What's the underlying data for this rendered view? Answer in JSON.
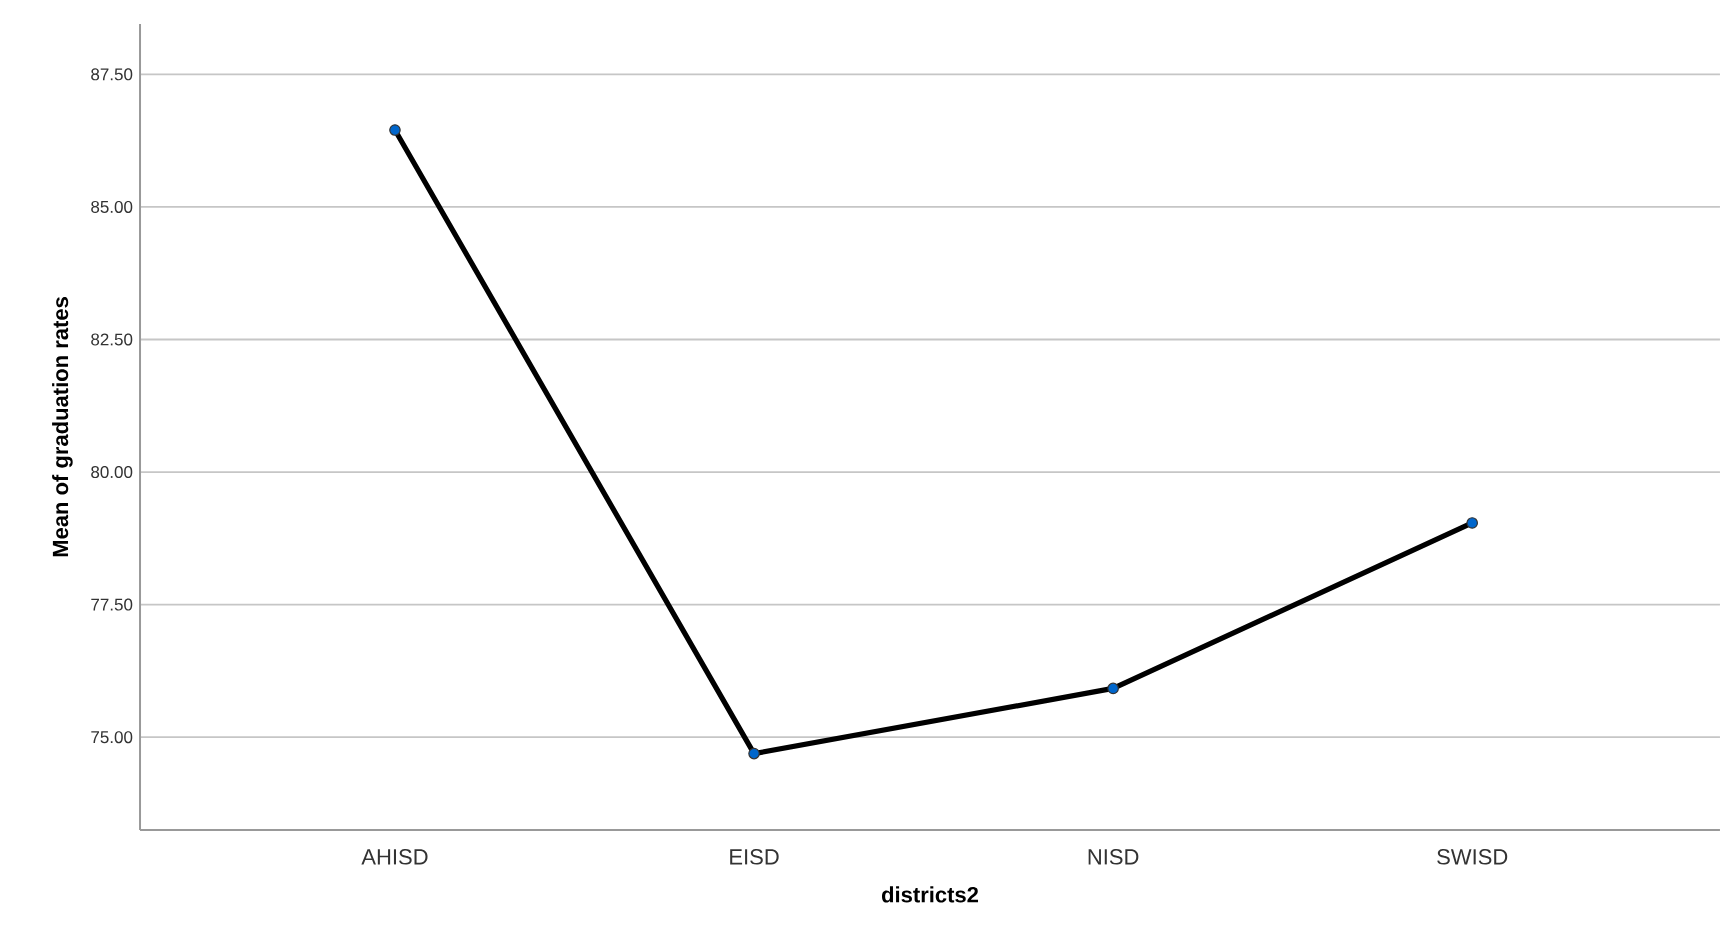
{
  "chart_data": {
    "type": "line",
    "xlabel": "districts2",
    "ylabel": "Mean of graduation rates",
    "categories": [
      "AHISD",
      "EISD",
      "NISD",
      "SWISD"
    ],
    "series": [
      {
        "color": "#000000",
        "values": [
          86.45,
          74.69,
          75.92,
          79.04
        ]
      }
    ],
    "marker": "circle",
    "line_style": "solid",
    "grid": "y",
    "ylim": [
      73.25,
      88.45
    ],
    "yticks": [
      {
        "value": 75,
        "label": "75.00"
      },
      {
        "value": 77.5,
        "label": "77.50"
      },
      {
        "value": 80,
        "label": "80.00"
      },
      {
        "value": 82.5,
        "label": "82.50"
      },
      {
        "value": 85,
        "label": "85.00"
      },
      {
        "value": 87.5,
        "label": "87.50"
      }
    ]
  }
}
